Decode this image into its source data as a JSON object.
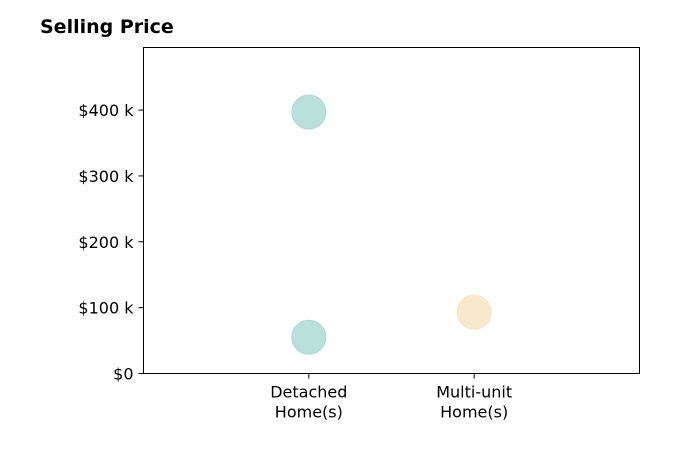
{
  "chart_data": {
    "type": "scatter",
    "title": "Selling Price",
    "xlabel": "",
    "ylabel": "",
    "categories": [
      [
        "Detached",
        "Home(s)"
      ],
      [
        "Multi-unit",
        "Home(s)"
      ]
    ],
    "x_range": [
      -1,
      2
    ],
    "ylim": [
      0,
      495000
    ],
    "y_ticks": [
      0,
      100000,
      200000,
      300000,
      400000
    ],
    "y_tick_labels": [
      "$0",
      "$100 k",
      "$200 k",
      "$300 k",
      "$400 k"
    ],
    "grid": false,
    "points": [
      {
        "category": 0,
        "value": 397000,
        "color": "#a8d8d2"
      },
      {
        "category": 0,
        "value": 55000,
        "color": "#a8d8d2"
      },
      {
        "category": 1,
        "value": 93000,
        "color": "#f7e3bf"
      }
    ]
  }
}
